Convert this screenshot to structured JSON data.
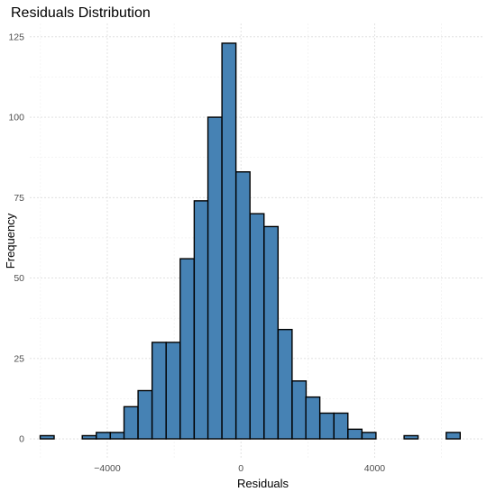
{
  "chart_data": {
    "type": "bar",
    "title": "Residuals Distribution",
    "xlabel": "Residuals",
    "ylabel": "Frequency",
    "bin_width": 418,
    "bins": [
      {
        "x": -5800,
        "count": 1
      },
      {
        "x": -5380,
        "count": 0
      },
      {
        "x": -4960,
        "count": 0
      },
      {
        "x": -4540,
        "count": 1
      },
      {
        "x": -4120,
        "count": 2
      },
      {
        "x": -3700,
        "count": 2
      },
      {
        "x": -3290,
        "count": 10
      },
      {
        "x": -2870,
        "count": 15
      },
      {
        "x": -2450,
        "count": 30
      },
      {
        "x": -2030,
        "count": 30
      },
      {
        "x": -1610,
        "count": 56
      },
      {
        "x": -1190,
        "count": 74
      },
      {
        "x": -780,
        "count": 100
      },
      {
        "x": -360,
        "count": 123
      },
      {
        "x": 60,
        "count": 83
      },
      {
        "x": 480,
        "count": 70
      },
      {
        "x": 900,
        "count": 66
      },
      {
        "x": 1320,
        "count": 34
      },
      {
        "x": 1740,
        "count": 18
      },
      {
        "x": 2150,
        "count": 13
      },
      {
        "x": 2570,
        "count": 8
      },
      {
        "x": 2990,
        "count": 8
      },
      {
        "x": 3410,
        "count": 3
      },
      {
        "x": 3830,
        "count": 2
      },
      {
        "x": 4250,
        "count": 0
      },
      {
        "x": 4670,
        "count": 0
      },
      {
        "x": 5090,
        "count": 1
      },
      {
        "x": 5510,
        "count": 0
      },
      {
        "x": 5930,
        "count": 0
      },
      {
        "x": 6350,
        "count": 2
      }
    ],
    "xlim": [
      -6320,
      7280
    ],
    "ylim": [
      -6.15,
      129.15
    ],
    "x_ticks": [
      -4000,
      0,
      4000
    ],
    "x_tick_labels": [
      "−4000",
      "0",
      "4000"
    ],
    "y_ticks": [
      0,
      25,
      50,
      75,
      100,
      125
    ],
    "y_tick_labels": [
      "0",
      "25",
      "50",
      "75",
      "100",
      "125"
    ],
    "grid": true,
    "bar_fill": "#4682b4",
    "bar_outline": "#000000"
  }
}
